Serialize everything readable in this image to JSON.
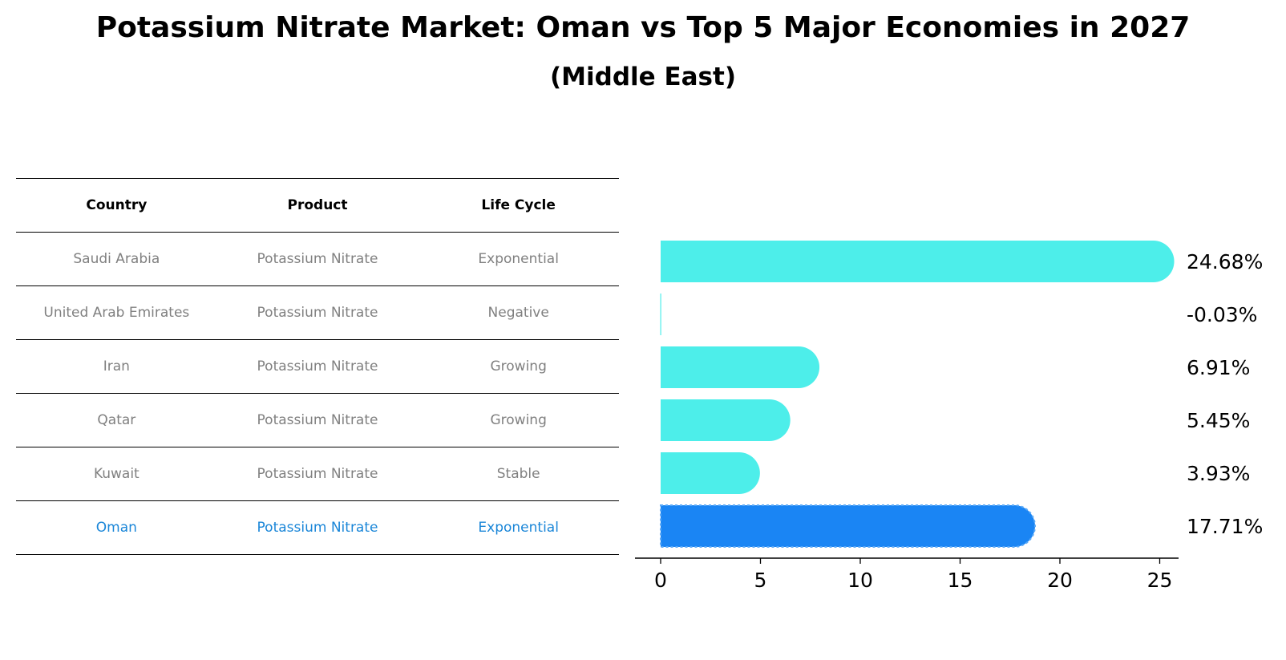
{
  "title": "Potassium Nitrate Market: Oman vs Top 5 Major Economies in 2027",
  "subtitle": "(Middle East)",
  "table": {
    "headers": [
      "Country",
      "Product",
      "Life Cycle"
    ],
    "rows": [
      [
        "Saudi Arabia",
        "Potassium Nitrate",
        "Exponential"
      ],
      [
        "United Arab Emirates",
        "Potassium Nitrate",
        "Negative"
      ],
      [
        "Iran",
        "Potassium Nitrate",
        "Growing"
      ],
      [
        "Qatar",
        "Potassium Nitrate",
        "Growing"
      ],
      [
        "Kuwait",
        "Potassium Nitrate",
        "Stable"
      ],
      [
        "Oman",
        "Potassium Nitrate",
        "Exponential"
      ]
    ]
  },
  "colors": {
    "bar": "#4DEEEA",
    "highlight": "#1A85F4",
    "highlight_text": "#1A86D8"
  },
  "chart_data": {
    "type": "bar",
    "orientation": "horizontal",
    "categories": [
      "Saudi Arabia",
      "United Arab Emirates",
      "Iran",
      "Qatar",
      "Kuwait",
      "Oman"
    ],
    "values": [
      24.68,
      -0.03,
      6.91,
      5.45,
      3.93,
      17.71
    ],
    "value_labels": [
      "24.68%",
      "-0.03%",
      "6.91%",
      "5.45%",
      "3.93%",
      "17.71%"
    ],
    "highlight": "Oman",
    "xlim": [
      -1.3,
      26
    ],
    "xticks": [
      0,
      5,
      10,
      15,
      20,
      25
    ],
    "xtick_labels": [
      "0",
      "5",
      "10",
      "15",
      "20",
      "25"
    ]
  }
}
